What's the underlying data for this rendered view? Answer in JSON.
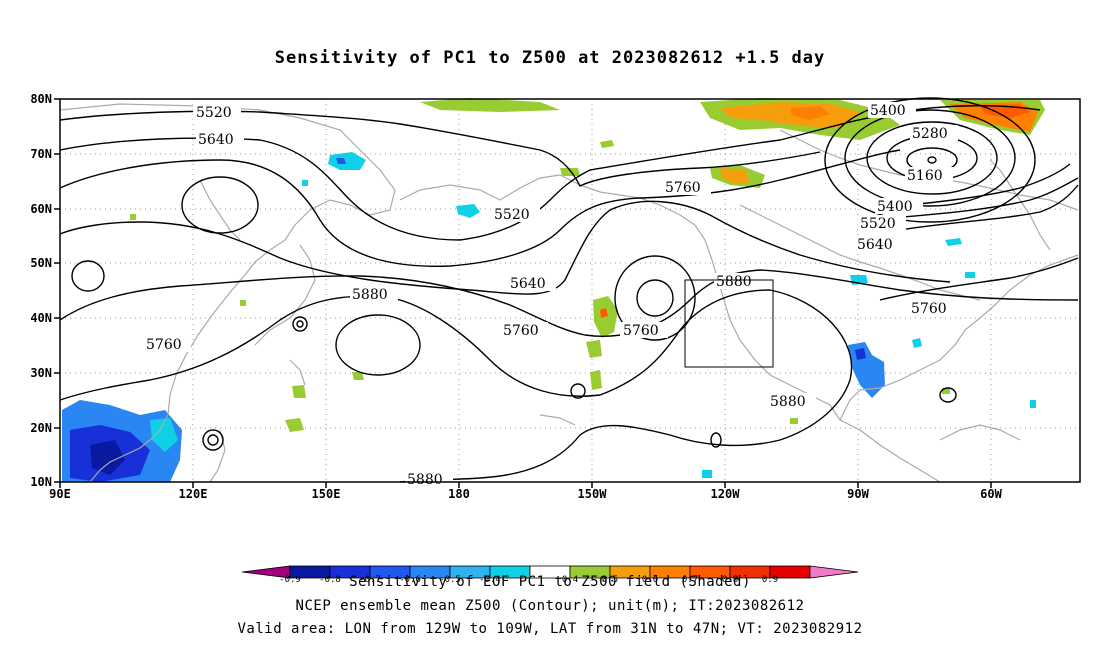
{
  "title": "Sensitivity of PC1 to Z500 at 2023082612 +1.5 day",
  "lat_labels": [
    "80N",
    "70N",
    "60N",
    "50N",
    "40N",
    "30N",
    "20N",
    "10N"
  ],
  "lon_labels": [
    "90E",
    "120E",
    "150E",
    "180",
    "150W",
    "120W",
    "90W",
    "60W"
  ],
  "contour_labels": [
    "5520",
    "5640",
    "5760",
    "5880",
    "5400",
    "5280",
    "5160"
  ],
  "colorbar": {
    "ticks": [
      "-0.9",
      "-0.8",
      "-0.7",
      "-0.6",
      "-0.5",
      "-0.4",
      "0.4",
      "0.5",
      "0.6",
      "0.7",
      "0.8",
      "0.9"
    ],
    "colors": [
      "#a0007a",
      "#0a1aa0",
      "#1730d8",
      "#2058f0",
      "#2a86f2",
      "#30b2f0",
      "#10d0e8",
      "#ffffff",
      "#99cc33",
      "#f59e0b",
      "#ff8000",
      "#ff5a00",
      "#f03000",
      "#e60000",
      "#f07ac8"
    ]
  },
  "captions": {
    "line1": "Sensitivity of EOF PC1 to Z500 field (Shaded)",
    "line2": "NCEP ensemble mean Z500 (Contour); unit(m); IT:2023082612",
    "line3": "Valid area: LON from 129W to 109W, LAT from 31N to 47N; VT: 2023082912"
  },
  "valid_area": {
    "lon": [
      -129,
      -109
    ],
    "lat": [
      31,
      47
    ]
  }
}
